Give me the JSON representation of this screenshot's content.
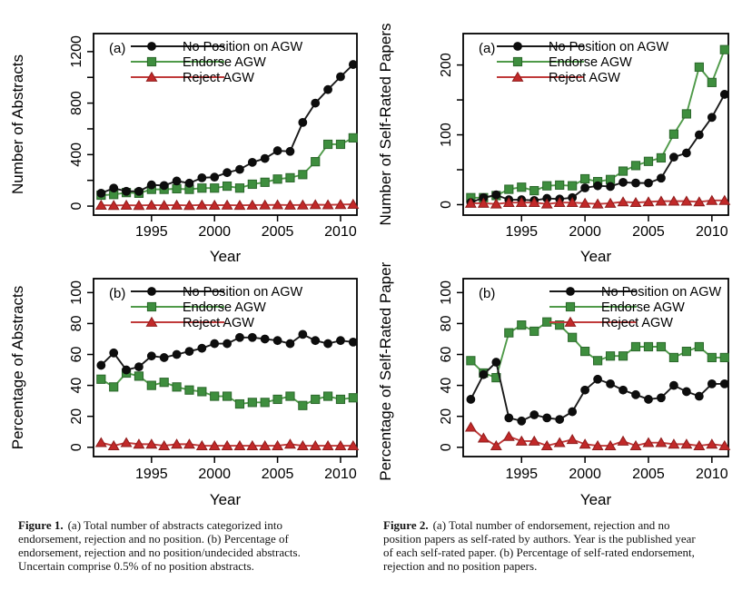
{
  "page": {
    "background": "#ffffff"
  },
  "colors": {
    "black": "#111111",
    "green": "#3e8e3e",
    "red": "#c22929"
  },
  "captions": {
    "figure1": {
      "label": "Figure 1.",
      "text": "(a) Total number of abstracts categorized into\nendorsement, rejection and no position. (b) Percentage of\nendorsement, rejection and no position/undecided abstracts.\nUncertain comprise 0.5% of no position abstracts."
    },
    "figure2": {
      "label": "Figure 2.",
      "text": "(a) Total number of endorsement, rejection and no\nposition papers as self-rated by authors. Year is the published year\nof each self-rated paper. (b) Percentage of self-rated endorsement,\nrejection and no position papers."
    }
  },
  "chart_data": [
    {
      "id": "fig1a",
      "type": "line",
      "panel": "(a)",
      "xlabel": "Year",
      "ylabel": "Number of Abstracts",
      "x": [
        1991,
        1992,
        1993,
        1994,
        1995,
        1996,
        1997,
        1998,
        1999,
        2000,
        2001,
        2002,
        2003,
        2004,
        2005,
        2006,
        2007,
        2008,
        2009,
        2010,
        2011
      ],
      "xticks": [
        1995,
        2000,
        2005,
        2010
      ],
      "xlim": [
        1990.4,
        2011.3
      ],
      "ylim": [
        -70,
        1340
      ],
      "yticks": [
        0,
        400,
        800,
        1200
      ],
      "yminor": [
        200,
        600,
        1000
      ],
      "grid": false,
      "legend_position": "top-left-inside",
      "series": [
        {
          "name": "No Position on AGW",
          "marker": "circle",
          "color": "#0d0d0d",
          "edge": "#0d0d0d",
          "line_color": "#1a1a1a",
          "zorder": 2,
          "values": [
            100,
            140,
            115,
            115,
            165,
            160,
            195,
            178,
            220,
            225,
            260,
            285,
            340,
            370,
            430,
            425,
            650,
            800,
            905,
            1005,
            1100
          ]
        },
        {
          "name": "Endorse AGW",
          "marker": "square",
          "color": "#3e8e3e",
          "edge": "#2b672b",
          "line_color": "#4f9a49",
          "zorder": 1,
          "values": [
            85,
            90,
            105,
            100,
            130,
            130,
            135,
            130,
            140,
            140,
            155,
            140,
            170,
            185,
            210,
            220,
            245,
            345,
            480,
            480,
            530
          ]
        },
        {
          "name": "Reject AGW",
          "marker": "triangle",
          "color": "#c22929",
          "edge": "#8e1d1d",
          "line_color": "#c03a3a",
          "zorder": 3,
          "values": [
            7,
            5,
            7,
            5,
            8,
            6,
            8,
            5,
            9,
            7,
            8,
            6,
            8,
            9,
            10,
            8,
            9,
            11,
            10,
            12,
            14
          ]
        }
      ]
    },
    {
      "id": "fig2a",
      "type": "line",
      "panel": "(a)",
      "xlabel": "Year",
      "ylabel": "Number of Self-Rated Papers",
      "x": [
        1991,
        1992,
        1993,
        1994,
        1995,
        1996,
        1997,
        1998,
        1999,
        2000,
        2001,
        2002,
        2003,
        2004,
        2005,
        2006,
        2007,
        2008,
        2009,
        2010,
        2011
      ],
      "xticks": [
        1995,
        2000,
        2005,
        2010
      ],
      "xlim": [
        1990.4,
        2011.3
      ],
      "ylim": [
        -15,
        245
      ],
      "yticks": [
        0,
        100,
        200
      ],
      "yminor": [
        50,
        150
      ],
      "grid": false,
      "legend_position": "top-left-inside",
      "series": [
        {
          "name": "No Position on AGW",
          "marker": "circle",
          "color": "#0d0d0d",
          "edge": "#0d0d0d",
          "line_color": "#1a1a1a",
          "zorder": 2,
          "values": [
            3,
            10,
            14,
            7,
            7,
            6,
            9,
            8,
            10,
            24,
            27,
            26,
            32,
            31,
            31,
            38,
            68,
            74,
            100,
            125,
            158
          ]
        },
        {
          "name": "Endorse AGW",
          "marker": "square",
          "color": "#3e8e3e",
          "edge": "#2b672b",
          "line_color": "#4f9a49",
          "zorder": 1,
          "values": [
            10,
            10,
            13,
            22,
            25,
            20,
            27,
            28,
            27,
            37,
            33,
            36,
            48,
            56,
            62,
            67,
            101,
            130,
            197,
            175,
            222
          ]
        },
        {
          "name": "Reject AGW",
          "marker": "triangle",
          "color": "#c22929",
          "edge": "#8e1d1d",
          "line_color": "#c03a3a",
          "zorder": 3,
          "values": [
            2,
            2,
            1,
            3,
            3,
            3,
            1,
            3,
            3,
            2,
            1,
            2,
            4,
            3,
            4,
            5,
            5,
            5,
            4,
            6,
            6
          ]
        }
      ]
    },
    {
      "id": "fig1b",
      "type": "line",
      "panel": "(b)",
      "xlabel": "Year",
      "ylabel": "Percentage of Abstracts",
      "x": [
        1991,
        1992,
        1993,
        1994,
        1995,
        1996,
        1997,
        1998,
        1999,
        2000,
        2001,
        2002,
        2003,
        2004,
        2005,
        2006,
        2007,
        2008,
        2009,
        2010,
        2011
      ],
      "xticks": [
        1995,
        2000,
        2005,
        2010
      ],
      "xlim": [
        1990.4,
        2011.3
      ],
      "ylim": [
        -6,
        109
      ],
      "yticks": [
        0,
        20,
        40,
        60,
        80,
        100
      ],
      "yminor": [],
      "grid": false,
      "legend_position": "top-left-inside",
      "series": [
        {
          "name": "No Position on AGW",
          "marker": "circle",
          "color": "#0d0d0d",
          "edge": "#0d0d0d",
          "line_color": "#1a1a1a",
          "zorder": 2,
          "values": [
            53,
            61,
            50,
            52,
            59,
            58,
            60,
            62,
            64,
            67,
            67,
            71,
            71,
            70,
            69,
            67,
            73,
            69,
            67,
            69,
            68
          ]
        },
        {
          "name": "Endorse AGW",
          "marker": "square",
          "color": "#3e8e3e",
          "edge": "#2b672b",
          "line_color": "#4f9a49",
          "zorder": 1,
          "values": [
            44,
            39,
            48,
            46,
            40,
            42,
            39,
            37,
            36,
            33,
            33,
            28,
            29,
            29,
            31,
            33,
            27,
            31,
            33,
            31,
            32
          ]
        },
        {
          "name": "Reject AGW",
          "marker": "triangle",
          "color": "#c22929",
          "edge": "#8e1d1d",
          "line_color": "#c03a3a",
          "zorder": 3,
          "values": [
            3,
            1,
            3,
            2,
            2,
            1,
            2,
            2,
            1,
            1,
            1,
            1,
            1,
            1,
            1,
            2,
            1,
            1,
            1,
            1,
            1
          ]
        }
      ]
    },
    {
      "id": "fig2b",
      "type": "line",
      "panel": "(b)",
      "xlabel": "Year",
      "ylabel": "Percentage of Self-Rated Papers",
      "x": [
        1991,
        1992,
        1993,
        1994,
        1995,
        1996,
        1997,
        1998,
        1999,
        2000,
        2001,
        2002,
        2003,
        2004,
        2005,
        2006,
        2007,
        2008,
        2009,
        2010,
        2011
      ],
      "xticks": [
        1995,
        2000,
        2005,
        2010
      ],
      "xlim": [
        1990.4,
        2011.3
      ],
      "ylim": [
        -6,
        109
      ],
      "yticks": [
        0,
        20,
        40,
        60,
        80,
        100
      ],
      "yminor": [],
      "grid": false,
      "legend_position": "top-right-inside",
      "series": [
        {
          "name": "No Position on AGW",
          "marker": "circle",
          "color": "#0d0d0d",
          "edge": "#0d0d0d",
          "line_color": "#1a1a1a",
          "zorder": 2,
          "values": [
            31,
            47,
            55,
            19,
            17,
            21,
            19,
            18,
            23,
            37,
            44,
            41,
            37,
            34,
            31,
            32,
            40,
            36,
            33,
            41,
            41
          ]
        },
        {
          "name": "Endorse AGW",
          "marker": "square",
          "color": "#3e8e3e",
          "edge": "#2b672b",
          "line_color": "#4f9a49",
          "zorder": 1,
          "values": [
            56,
            48,
            45,
            74,
            79,
            75,
            81,
            79,
            71,
            62,
            56,
            59,
            59,
            65,
            65,
            65,
            58,
            62,
            65,
            58,
            58
          ]
        },
        {
          "name": "Reject AGW",
          "marker": "triangle",
          "color": "#c22929",
          "edge": "#8e1d1d",
          "line_color": "#c03a3a",
          "zorder": 3,
          "values": [
            13,
            6,
            1,
            7,
            4,
            4,
            1,
            3,
            5,
            2,
            1,
            1,
            4,
            1,
            3,
            3,
            2,
            2,
            1,
            2,
            1
          ]
        }
      ]
    }
  ]
}
